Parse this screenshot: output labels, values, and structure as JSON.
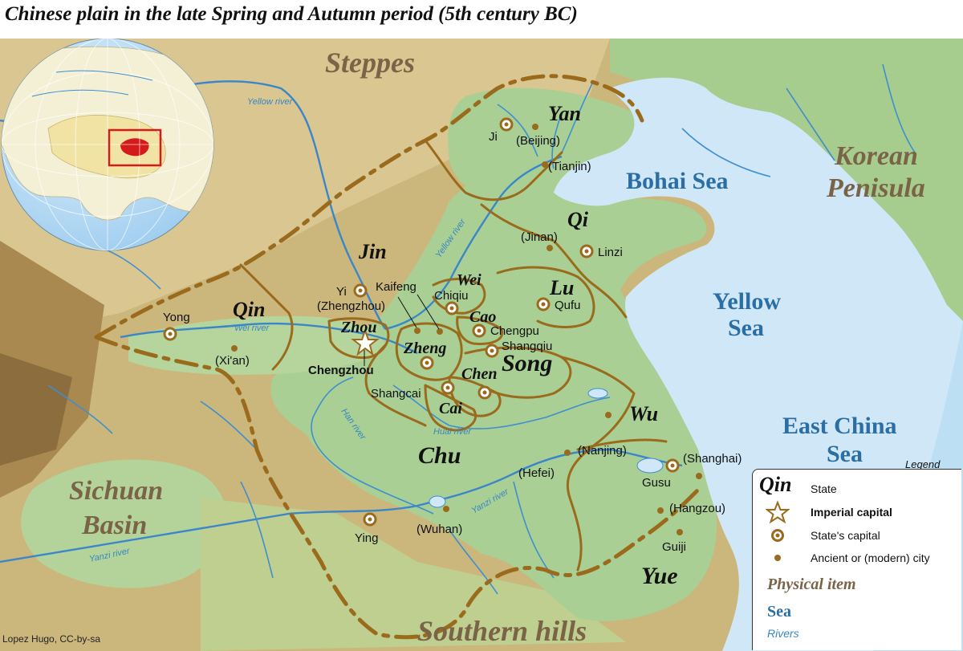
{
  "title": "Chinese plain in the late Spring and Autumn period (5th century BC)",
  "credit": "Lopez Hugo, CC-by-sa",
  "colors": {
    "land_green": "#a9cf94",
    "mountains": "#c9b57a",
    "sea": "#cfe7f7",
    "border": "#9b6b1d",
    "river": "#3f8fd0",
    "globe_ocean": "#b8dcf6",
    "globe_land": "#f4f0d6",
    "globe_china": "#f1e3a3",
    "highlight_red": "#d41a1a"
  },
  "states": [
    {
      "name": "Yan"
    },
    {
      "name": "Qi"
    },
    {
      "name": "Jin"
    },
    {
      "name": "Wei"
    },
    {
      "name": "Lu"
    },
    {
      "name": "Qin"
    },
    {
      "name": "Cao"
    },
    {
      "name": "Zhou"
    },
    {
      "name": "Zheng"
    },
    {
      "name": "Song"
    },
    {
      "name": "Chen"
    },
    {
      "name": "Cai"
    },
    {
      "name": "Wu"
    },
    {
      "name": "Chu"
    },
    {
      "name": "Yue"
    }
  ],
  "cities": {
    "ji": "Ji",
    "beijing": "(Beijing)",
    "tianjin": "(Tianjin)",
    "jinan": "(Jinan)",
    "linzi": "Linzi",
    "yi": "Yi",
    "zhengzhou": "(Zhengzhou)",
    "kaifeng": "Kaifeng",
    "chiqiu": "Chiqiu",
    "qufu": "Qufu",
    "yong": "Yong",
    "xian": "(Xi'an)",
    "chengpu": "Chengpu",
    "shangqiu": "Shangqiu",
    "chengzhou": "Chengzhou",
    "shangcai": "Shangcai",
    "nanjing": "(Nanjing)",
    "shanghai": "(Shanghai)",
    "gusu": "Gusu",
    "hefei": "(Hefei)",
    "hangzou": "(Hangzou)",
    "ying": "Ying",
    "wuhan": "(Wuhan)",
    "guiji": "Guiji"
  },
  "physical": {
    "steppes": "Steppes",
    "korean1": "Korean",
    "korean2": "Penisula",
    "sichuan1": "Sichuan",
    "sichuan2": "Basin",
    "southern": "Southern hills"
  },
  "seas": {
    "bohai": "Bohai Sea",
    "yellow1": "Yellow",
    "yellow2": "Sea",
    "eastchina1": "East China",
    "eastchina2": "Sea"
  },
  "rivers": {
    "yellow_globe": "Yellow river",
    "yellow_map": "Yellow river",
    "wei": "Wei river",
    "han": "Han river",
    "huai": "Huai river",
    "yanzi_east": "Yanzi river",
    "yanzi_west": "Yanzi river"
  },
  "legend": {
    "title": "Legend",
    "state_sample": "Qin",
    "state_label": "State",
    "imperial_label": "Imperial capital",
    "capital_label": "State's capital",
    "city_label": "Ancient or (modern) city",
    "physical_label": "Physical item",
    "sea_label": "Sea",
    "rivers_label": "Rivers"
  }
}
